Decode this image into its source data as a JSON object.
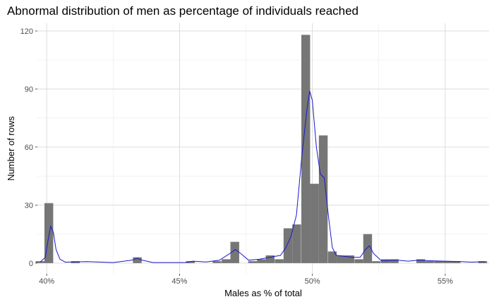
{
  "chart_data": {
    "type": "bar",
    "title": "Abnormal distribution of men as percentage of individuals reached",
    "xlabel": "Males as % of total",
    "ylabel": "Number of rows",
    "xlim": [
      0.3965,
      0.5665
    ],
    "ylim": [
      -5.5,
      124
    ],
    "bin_width": 0.0033,
    "x_ticks": [
      {
        "value": 0.4,
        "label": "40%"
      },
      {
        "value": 0.45,
        "label": "45%"
      },
      {
        "value": 0.5,
        "label": "50%"
      },
      {
        "value": 0.55,
        "label": "55%"
      }
    ],
    "y_ticks": [
      {
        "value": 0,
        "label": "0"
      },
      {
        "value": 30,
        "label": "30"
      },
      {
        "value": 60,
        "label": "60"
      },
      {
        "value": 90,
        "label": "90"
      },
      {
        "value": 120,
        "label": "120"
      }
    ],
    "bins": [
      {
        "x": 0.3975,
        "count": 1
      },
      {
        "x": 0.4008,
        "count": 31
      },
      {
        "x": 0.4108,
        "count": 1
      },
      {
        "x": 0.4341,
        "count": 3
      },
      {
        "x": 0.4541,
        "count": 1
      },
      {
        "x": 0.4641,
        "count": 1
      },
      {
        "x": 0.4675,
        "count": 2
      },
      {
        "x": 0.4708,
        "count": 11
      },
      {
        "x": 0.4775,
        "count": 1
      },
      {
        "x": 0.4808,
        "count": 2
      },
      {
        "x": 0.4841,
        "count": 4
      },
      {
        "x": 0.4875,
        "count": 2
      },
      {
        "x": 0.4908,
        "count": 18
      },
      {
        "x": 0.4941,
        "count": 20
      },
      {
        "x": 0.4975,
        "count": 118
      },
      {
        "x": 0.5008,
        "count": 41
      },
      {
        "x": 0.5041,
        "count": 66
      },
      {
        "x": 0.5075,
        "count": 6
      },
      {
        "x": 0.5108,
        "count": 4
      },
      {
        "x": 0.5141,
        "count": 4
      },
      {
        "x": 0.5175,
        "count": 2
      },
      {
        "x": 0.5208,
        "count": 15
      },
      {
        "x": 0.5241,
        "count": 1
      },
      {
        "x": 0.5275,
        "count": 2
      },
      {
        "x": 0.5308,
        "count": 2
      },
      {
        "x": 0.5341,
        "count": 0
      },
      {
        "x": 0.5375,
        "count": 0
      },
      {
        "x": 0.5408,
        "count": 2
      },
      {
        "x": 0.5441,
        "count": 1
      },
      {
        "x": 0.5475,
        "count": 1
      },
      {
        "x": 0.5508,
        "count": 1
      },
      {
        "x": 0.5541,
        "count": 1
      },
      {
        "x": 0.5641,
        "count": 1
      }
    ],
    "density_curve": {
      "color": "#1a1acc",
      "points": [
        [
          0.3975,
          0.5
        ],
        [
          0.3995,
          3
        ],
        [
          0.4005,
          12
        ],
        [
          0.4015,
          19
        ],
        [
          0.4025,
          16
        ],
        [
          0.4035,
          7
        ],
        [
          0.405,
          2
        ],
        [
          0.407,
          0.5
        ],
        [
          0.415,
          0.8
        ],
        [
          0.425,
          0.3
        ],
        [
          0.432,
          1.5
        ],
        [
          0.434,
          2.5
        ],
        [
          0.436,
          1.5
        ],
        [
          0.44,
          0.3
        ],
        [
          0.452,
          0.3
        ],
        [
          0.455,
          1
        ],
        [
          0.46,
          0.6
        ],
        [
          0.465,
          1.5
        ],
        [
          0.469,
          5
        ],
        [
          0.471,
          7
        ],
        [
          0.473,
          5
        ],
        [
          0.476,
          1.5
        ],
        [
          0.48,
          2
        ],
        [
          0.484,
          3
        ],
        [
          0.488,
          4
        ],
        [
          0.49,
          8
        ],
        [
          0.492,
          14
        ],
        [
          0.494,
          25
        ],
        [
          0.496,
          55
        ],
        [
          0.498,
          80
        ],
        [
          0.499,
          89
        ],
        [
          0.5,
          84
        ],
        [
          0.5015,
          60
        ],
        [
          0.503,
          46
        ],
        [
          0.5045,
          44
        ],
        [
          0.506,
          25
        ],
        [
          0.5075,
          8
        ],
        [
          0.509,
          4
        ],
        [
          0.512,
          3.5
        ],
        [
          0.515,
          3
        ],
        [
          0.518,
          3
        ],
        [
          0.52,
          7
        ],
        [
          0.5215,
          9
        ],
        [
          0.523,
          5
        ],
        [
          0.526,
          1.2
        ],
        [
          0.532,
          1.5
        ],
        [
          0.536,
          1
        ],
        [
          0.54,
          1.5
        ],
        [
          0.545,
          1.2
        ],
        [
          0.55,
          1
        ],
        [
          0.556,
          0.8
        ],
        [
          0.56,
          0.5
        ],
        [
          0.565,
          0.8
        ]
      ]
    },
    "bar_color": "#767676",
    "panel_background": "#ffffff",
    "grid": true
  }
}
